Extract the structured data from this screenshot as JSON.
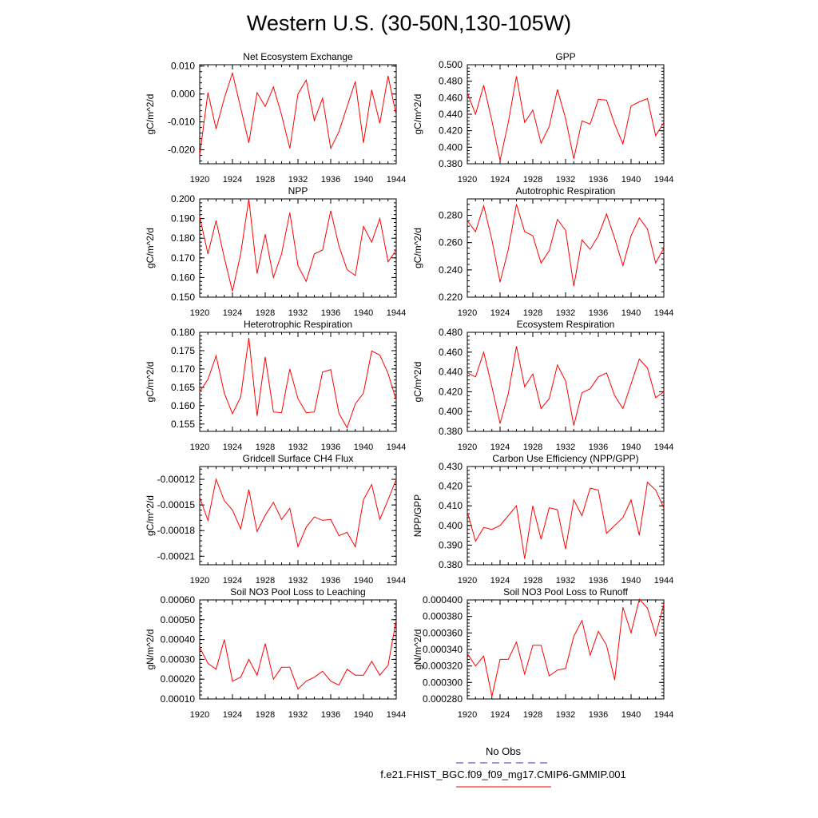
{
  "title": "Western U.S. (30-50N,130-105W)",
  "legend": {
    "obs_label": "No Obs",
    "model_label": "f.e21.FHIST_BGC.f09_f09_mg17.CMIP6-GMMIP.001",
    "obs_color": "#3333cc",
    "model_color": "#ff0000"
  },
  "colors": {
    "line": "#ff0000",
    "axis": "#000000"
  },
  "chart_data": [
    {
      "type": "line",
      "title": "Net Ecosystem Exchange",
      "ylabel": "gC/m^2/d",
      "xlim": [
        1920,
        1944
      ],
      "xticks": [
        1920,
        1924,
        1928,
        1932,
        1936,
        1940,
        1944
      ],
      "ylim": [
        -0.025,
        0.0105
      ],
      "yticks": [
        -0.02,
        -0.01,
        0.0,
        0.01
      ],
      "ytick_labels": [
        "-0.020",
        "-0.010",
        "0.000",
        "0.010"
      ],
      "x": [
        1920,
        1921,
        1922,
        1923,
        1924,
        1925,
        1926,
        1927,
        1928,
        1929,
        1930,
        1931,
        1932,
        1933,
        1934,
        1935,
        1936,
        1937,
        1938,
        1939,
        1940,
        1941,
        1942,
        1943,
        1944
      ],
      "values": [
        -0.022,
        0.0005,
        -0.0125,
        -0.0015,
        0.0075,
        -0.005,
        -0.0175,
        0.0005,
        -0.0045,
        0.0025,
        -0.0075,
        -0.0195,
        0.0,
        0.005,
        -0.0095,
        -0.0015,
        -0.0195,
        -0.0135,
        -0.0045,
        0.0045,
        -0.0175,
        0.0015,
        -0.0105,
        0.0065,
        -0.0075
      ]
    },
    {
      "type": "line",
      "title": "GPP",
      "ylabel": "gC/m^2/d",
      "xlim": [
        1920,
        1944
      ],
      "xticks": [
        1920,
        1924,
        1928,
        1932,
        1936,
        1940,
        1944
      ],
      "ylim": [
        0.38,
        0.5
      ],
      "yticks": [
        0.38,
        0.4,
        0.42,
        0.44,
        0.46,
        0.48,
        0.5
      ],
      "ytick_labels": [
        "0.380",
        "0.400",
        "0.420",
        "0.440",
        "0.460",
        "0.480",
        "0.500"
      ],
      "x": [
        1920,
        1921,
        1922,
        1923,
        1924,
        1925,
        1926,
        1927,
        1928,
        1929,
        1930,
        1931,
        1932,
        1933,
        1934,
        1935,
        1936,
        1937,
        1938,
        1939,
        1940,
        1941,
        1942,
        1943,
        1944
      ],
      "values": [
        0.466,
        0.44,
        0.475,
        0.432,
        0.384,
        0.43,
        0.486,
        0.43,
        0.445,
        0.405,
        0.425,
        0.47,
        0.435,
        0.386,
        0.432,
        0.428,
        0.458,
        0.457,
        0.428,
        0.404,
        0.45,
        0.455,
        0.459,
        0.414,
        0.43
      ]
    },
    {
      "type": "line",
      "title": "NPP",
      "ylabel": "gC/m^2/d",
      "xlim": [
        1920,
        1944
      ],
      "xticks": [
        1920,
        1924,
        1928,
        1932,
        1936,
        1940,
        1944
      ],
      "ylim": [
        0.15,
        0.2
      ],
      "yticks": [
        0.15,
        0.16,
        0.17,
        0.18,
        0.19,
        0.2
      ],
      "ytick_labels": [
        "0.150",
        "0.160",
        "0.170",
        "0.180",
        "0.190",
        "0.200"
      ],
      "x": [
        1920,
        1921,
        1922,
        1923,
        1924,
        1925,
        1926,
        1927,
        1928,
        1929,
        1930,
        1931,
        1932,
        1933,
        1934,
        1935,
        1936,
        1937,
        1938,
        1939,
        1940,
        1941,
        1942,
        1943,
        1944
      ],
      "values": [
        0.191,
        0.172,
        0.189,
        0.17,
        0.153,
        0.172,
        0.2,
        0.162,
        0.182,
        0.16,
        0.172,
        0.193,
        0.166,
        0.158,
        0.172,
        0.174,
        0.194,
        0.176,
        0.164,
        0.161,
        0.186,
        0.178,
        0.19,
        0.168,
        0.174
      ]
    },
    {
      "type": "line",
      "title": "Autotrophic Respiration",
      "ylabel": "gC/m^2/d",
      "xlim": [
        1920,
        1944
      ],
      "xticks": [
        1920,
        1924,
        1928,
        1932,
        1936,
        1940,
        1944
      ],
      "ylim": [
        0.22,
        0.292
      ],
      "yticks": [
        0.22,
        0.24,
        0.26,
        0.28
      ],
      "ytick_labels": [
        "0.220",
        "0.240",
        "0.260",
        "0.280"
      ],
      "x": [
        1920,
        1921,
        1922,
        1923,
        1924,
        1925,
        1926,
        1927,
        1928,
        1929,
        1930,
        1931,
        1932,
        1933,
        1934,
        1935,
        1936,
        1937,
        1938,
        1939,
        1940,
        1941,
        1942,
        1943,
        1944
      ],
      "values": [
        0.276,
        0.268,
        0.287,
        0.262,
        0.231,
        0.255,
        0.288,
        0.268,
        0.265,
        0.245,
        0.254,
        0.277,
        0.269,
        0.228,
        0.262,
        0.255,
        0.265,
        0.281,
        0.263,
        0.243,
        0.265,
        0.278,
        0.27,
        0.245,
        0.256
      ]
    },
    {
      "type": "line",
      "title": "Heterotrophic Respiration",
      "ylabel": "gC/m^2/d",
      "xlim": [
        1920,
        1944
      ],
      "xticks": [
        1920,
        1924,
        1928,
        1932,
        1936,
        1940,
        1944
      ],
      "ylim": [
        0.153,
        0.18
      ],
      "yticks": [
        0.155,
        0.16,
        0.165,
        0.17,
        0.175,
        0.18
      ],
      "ytick_labels": [
        "0.155",
        "0.160",
        "0.165",
        "0.170",
        "0.175",
        "0.180"
      ],
      "x": [
        1920,
        1921,
        1922,
        1923,
        1924,
        1925,
        1926,
        1927,
        1928,
        1929,
        1930,
        1931,
        1932,
        1933,
        1934,
        1935,
        1936,
        1937,
        1938,
        1939,
        1940,
        1941,
        1942,
        1943,
        1944
      ],
      "values": [
        0.1638,
        0.1672,
        0.1736,
        0.1634,
        0.1578,
        0.1624,
        0.1785,
        0.1572,
        0.1733,
        0.1583,
        0.1581,
        0.17,
        0.1619,
        0.1581,
        0.1583,
        0.1692,
        0.1698,
        0.1579,
        0.154,
        0.1605,
        0.1634,
        0.1749,
        0.1738,
        0.1688,
        0.1615
      ]
    },
    {
      "type": "line",
      "title": "Ecosystem Respiration",
      "ylabel": "gC/m^2/d",
      "xlim": [
        1920,
        1944
      ],
      "xticks": [
        1920,
        1924,
        1928,
        1932,
        1936,
        1940,
        1944
      ],
      "ylim": [
        0.38,
        0.48
      ],
      "yticks": [
        0.38,
        0.4,
        0.42,
        0.44,
        0.46,
        0.48
      ],
      "ytick_labels": [
        "0.380",
        "0.400",
        "0.420",
        "0.440",
        "0.460",
        "0.480"
      ],
      "x": [
        1920,
        1921,
        1922,
        1923,
        1924,
        1925,
        1926,
        1927,
        1928,
        1929,
        1930,
        1931,
        1932,
        1933,
        1934,
        1935,
        1936,
        1937,
        1938,
        1939,
        1940,
        1941,
        1942,
        1943,
        1944
      ],
      "values": [
        0.439,
        0.435,
        0.46,
        0.425,
        0.388,
        0.418,
        0.466,
        0.425,
        0.438,
        0.403,
        0.413,
        0.447,
        0.431,
        0.386,
        0.419,
        0.423,
        0.435,
        0.439,
        0.416,
        0.403,
        0.428,
        0.453,
        0.444,
        0.414,
        0.42
      ]
    },
    {
      "type": "line",
      "title": "Gridcell Surface CH4 Flux",
      "ylabel": "gC/m^2/d",
      "xlim": [
        1920,
        1944
      ],
      "xticks": [
        1920,
        1924,
        1928,
        1932,
        1936,
        1940,
        1944
      ],
      "ylim": [
        -0.00022,
        -0.000105
      ],
      "yticks": [
        -0.00021,
        -0.00018,
        -0.00015,
        -0.00012
      ],
      "ytick_labels": [
        "-0.00021",
        "-0.00018",
        "-0.00015",
        "-0.00012"
      ],
      "x": [
        1920,
        1921,
        1922,
        1923,
        1924,
        1925,
        1926,
        1927,
        1928,
        1929,
        1930,
        1931,
        1932,
        1933,
        1934,
        1935,
        1936,
        1937,
        1938,
        1939,
        1940,
        1941,
        1942,
        1943,
        1944
      ],
      "values": [
        -0.000141,
        -0.000168,
        -0.00012,
        -0.000145,
        -0.000156,
        -0.000178,
        -0.000132,
        -0.000181,
        -0.000162,
        -0.000147,
        -0.000167,
        -0.000154,
        -0.000199,
        -0.000176,
        -0.000164,
        -0.000168,
        -0.000167,
        -0.000186,
        -0.000182,
        -0.000199,
        -0.000144,
        -0.000126,
        -0.000167,
        -0.000144,
        -0.00012
      ]
    },
    {
      "type": "line",
      "title": "Carbon Use Efficiency (NPP/GPP)",
      "ylabel": "NPP/GPP",
      "xlim": [
        1920,
        1944
      ],
      "xticks": [
        1920,
        1924,
        1928,
        1932,
        1936,
        1940,
        1944
      ],
      "ylim": [
        0.38,
        0.43
      ],
      "yticks": [
        0.38,
        0.39,
        0.4,
        0.41,
        0.42,
        0.43
      ],
      "ytick_labels": [
        "0.380",
        "0.390",
        "0.400",
        "0.410",
        "0.420",
        "0.430"
      ],
      "x": [
        1920,
        1921,
        1922,
        1923,
        1924,
        1925,
        1926,
        1927,
        1928,
        1929,
        1930,
        1931,
        1932,
        1933,
        1934,
        1935,
        1936,
        1937,
        1938,
        1939,
        1940,
        1941,
        1942,
        1943,
        1944
      ],
      "values": [
        0.407,
        0.392,
        0.399,
        0.398,
        0.4,
        0.405,
        0.41,
        0.383,
        0.41,
        0.393,
        0.409,
        0.408,
        0.388,
        0.413,
        0.405,
        0.419,
        0.418,
        0.396,
        0.4,
        0.404,
        0.413,
        0.395,
        0.422,
        0.418,
        0.409
      ]
    },
    {
      "type": "line",
      "title": "Soil NO3 Pool Loss to Leaching",
      "ylabel": "gN/m^2/d",
      "xlim": [
        1920,
        1944
      ],
      "xticks": [
        1920,
        1924,
        1928,
        1932,
        1936,
        1940,
        1944
      ],
      "ylim": [
        0.0001,
        0.0006
      ],
      "yticks": [
        0.0001,
        0.0002,
        0.0003,
        0.0004,
        0.0005,
        0.0006
      ],
      "ytick_labels": [
        "0.00010",
        "0.00020",
        "0.00030",
        "0.00040",
        "0.00050",
        "0.00060"
      ],
      "x": [
        1920,
        1921,
        1922,
        1923,
        1924,
        1925,
        1926,
        1927,
        1928,
        1929,
        1930,
        1931,
        1932,
        1933,
        1934,
        1935,
        1936,
        1937,
        1938,
        1939,
        1940,
        1941,
        1942,
        1943,
        1944
      ],
      "values": [
        0.00036,
        0.00028,
        0.00025,
        0.0004,
        0.00019,
        0.00021,
        0.0003,
        0.00022,
        0.00038,
        0.0002,
        0.00026,
        0.00026,
        0.00015,
        0.00019,
        0.00021,
        0.00024,
        0.00019,
        0.00017,
        0.00025,
        0.00022,
        0.00022,
        0.00029,
        0.00022,
        0.00027,
        0.0005
      ]
    },
    {
      "type": "line",
      "title": "Soil NO3 Pool Loss to Runoff",
      "ylabel": "gN/m^2/d",
      "xlim": [
        1920,
        1944
      ],
      "xticks": [
        1920,
        1924,
        1928,
        1932,
        1936,
        1940,
        1944
      ],
      "ylim": [
        0.00028,
        0.0004
      ],
      "yticks": [
        0.00028,
        0.0003,
        0.00032,
        0.00034,
        0.00036,
        0.00038,
        0.0004
      ],
      "ytick_labels": [
        "0.000280",
        "0.000300",
        "0.000320",
        "0.000340",
        "0.000360",
        "0.000380",
        "0.000400"
      ],
      "x": [
        1920,
        1921,
        1922,
        1923,
        1924,
        1925,
        1926,
        1927,
        1928,
        1929,
        1930,
        1931,
        1932,
        1933,
        1934,
        1935,
        1936,
        1937,
        1938,
        1939,
        1940,
        1941,
        1942,
        1943,
        1944
      ],
      "values": [
        0.000335,
        0.00032,
        0.000332,
        0.000283,
        0.000328,
        0.000328,
        0.000349,
        0.00031,
        0.000345,
        0.000345,
        0.000308,
        0.000315,
        0.000317,
        0.000356,
        0.000375,
        0.000333,
        0.000362,
        0.000345,
        0.000303,
        0.000391,
        0.00036,
        0.000401,
        0.00039,
        0.000357,
        0.000395
      ]
    }
  ]
}
